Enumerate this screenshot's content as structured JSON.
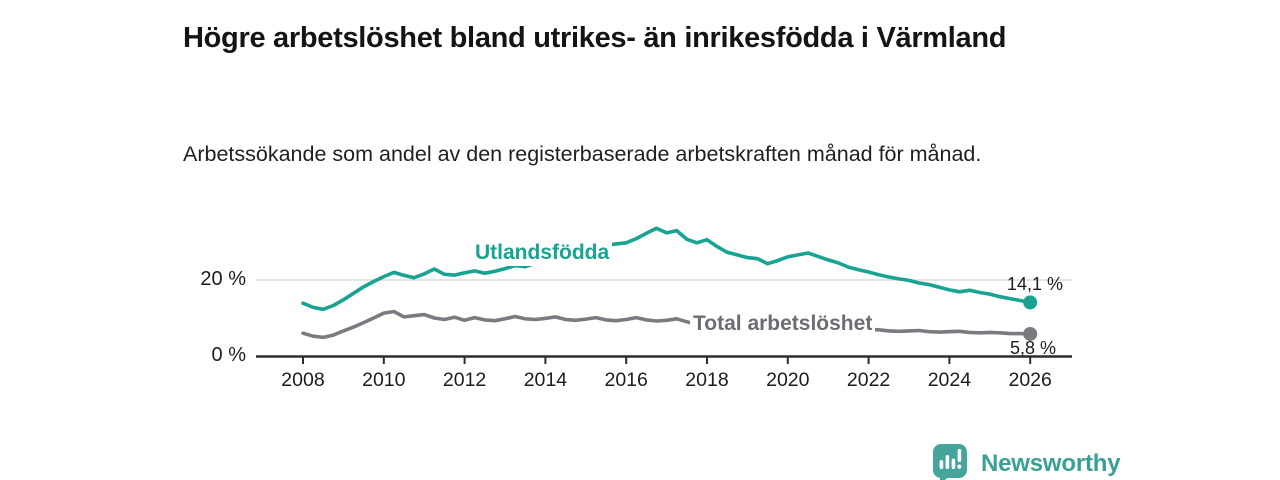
{
  "chart_data": {
    "type": "line",
    "title": "Högre arbetslöshet bland utrikes- än inrikesfödda i Värmland",
    "subtitle": "Arbetssökande som andel av den registerbaserade arbetskraften månad för månad.",
    "xlabel": "",
    "ylabel": "",
    "x_start": 2008,
    "x_step": 0.25,
    "xlim": [
      2008,
      2026.1
    ],
    "ylim": [
      0,
      36
    ],
    "x_ticks": [
      2008,
      2010,
      2012,
      2014,
      2016,
      2018,
      2020,
      2022,
      2024,
      2026
    ],
    "y_ticks": [
      {
        "value": 0,
        "label": "0 %"
      },
      {
        "value": 20,
        "label": "20 %"
      }
    ],
    "gridlines_y": [
      20
    ],
    "legend_position": "inline-labels",
    "series": [
      {
        "name": "Utlandsfödda",
        "color": "#18a392",
        "end_label": "14,1 %",
        "end_value": 14.1,
        "values": [
          13.9,
          12.8,
          12.3,
          13.3,
          14.8,
          16.5,
          18.2,
          19.6,
          20.9,
          22.0,
          21.2,
          20.6,
          21.6,
          22.9,
          21.5,
          21.3,
          21.9,
          22.4,
          21.8,
          22.3,
          23.0,
          23.8,
          23.5,
          24.4,
          25.2,
          26.2,
          26.0,
          27.3,
          28.4,
          29.0,
          29.2,
          29.5,
          29.8,
          30.9,
          32.3,
          33.6,
          32.4,
          33.0,
          30.7,
          29.8,
          30.6,
          28.8,
          27.3,
          26.6,
          25.9,
          25.6,
          24.3,
          25.1,
          26.1,
          26.6,
          27.1,
          26.2,
          25.3,
          24.5,
          23.4,
          22.7,
          22.1,
          21.4,
          20.8,
          20.3,
          19.9,
          19.2,
          18.8,
          18.1,
          17.4,
          16.9,
          17.3,
          16.7,
          16.3,
          15.6,
          15.1,
          14.6,
          14.1
        ]
      },
      {
        "name": "Total arbetslöshet",
        "color": "#7c7a80",
        "end_label": "5,8 %",
        "end_value": 5.8,
        "values": [
          6.0,
          5.2,
          4.9,
          5.5,
          6.6,
          7.6,
          8.8,
          10.0,
          11.3,
          11.7,
          10.3,
          10.6,
          10.9,
          10.0,
          9.6,
          10.2,
          9.4,
          10.1,
          9.5,
          9.3,
          9.8,
          10.4,
          9.8,
          9.6,
          9.9,
          10.3,
          9.6,
          9.4,
          9.7,
          10.1,
          9.5,
          9.3,
          9.6,
          10.1,
          9.5,
          9.2,
          9.4,
          9.8,
          9.0,
          8.3,
          8.1,
          8.4,
          7.8,
          7.6,
          7.7,
          7.9,
          7.4,
          7.3,
          7.6,
          8.6,
          8.5,
          8.2,
          8.1,
          7.9,
          7.4,
          7.1,
          7.0,
          6.9,
          6.6,
          6.5,
          6.6,
          6.7,
          6.4,
          6.3,
          6.4,
          6.5,
          6.2,
          6.1,
          6.2,
          6.1,
          5.9,
          5.9,
          5.8
        ]
      }
    ]
  },
  "footer": {
    "brand": "Newsworthy"
  },
  "colors": {
    "accent_teal": "#18a392",
    "series_gray": "#7c7a80",
    "axis": "#2d2d2d",
    "grid": "#d4d4d4",
    "text": "#141414",
    "logo_teal": "#45a49b"
  }
}
